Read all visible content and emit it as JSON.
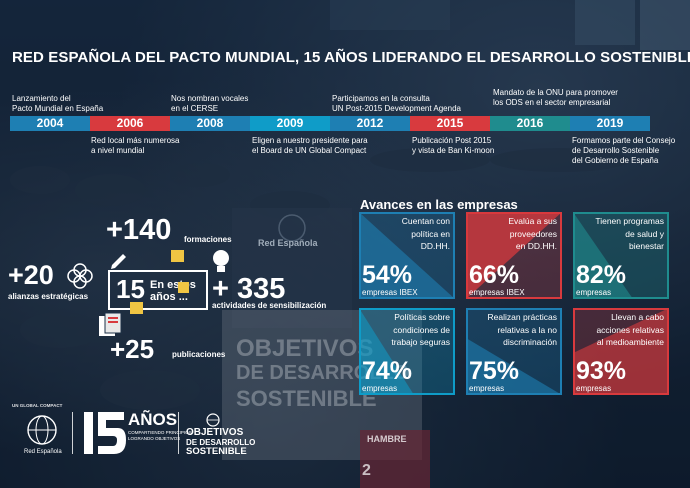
{
  "title": "RED ESPAÑOLA DEL PACTO MUNDIAL, 15 AÑOS LIDERANDO EL DESARROLLO SOSTENIBLE",
  "timeline": {
    "years": [
      "2004",
      "2006",
      "2008",
      "2009",
      "2012",
      "2015",
      "2016",
      "2019"
    ],
    "year_colors": [
      "#1e7fb3",
      "#d83a3e",
      "#1e7fb3",
      "#0f9cc8",
      "#1e7fb3",
      "#d83a3e",
      "#1f8c8e",
      "#1e7fb3"
    ],
    "above": [
      {
        "l1": "Lanzamiento del",
        "l2": "Pacto Mundial en España"
      },
      {
        "l1": "Nos nombran vocales",
        "l2": "en el CERSE"
      },
      {
        "l1": "Participamos en la consulta",
        "l2": "UN Post-2015 Development Agenda"
      },
      {
        "l1": "Mandato de la ONU para  promover",
        "l2": "los ODS en el sector empresarial"
      }
    ],
    "below": [
      {
        "l1": "Red local más numerosa",
        "l2": "a nivel mundial",
        "l3": ""
      },
      {
        "l1": "Eligen a nuestro presidente para",
        "l2": "el Board de UN Global Compact",
        "l3": ""
      },
      {
        "l1": "Publicación Post 2015",
        "l2": "y vista de Ban Ki-moon",
        "l3": ""
      },
      {
        "l1": "Formamos parte del Consejo",
        "l2": "de Desarrollo Sostenible",
        "l3": "del Gobierno de España"
      }
    ]
  },
  "stats": {
    "alianzas_num": "+20",
    "alianzas_label": "alianzas estratégicas",
    "formaciones_num": "+140",
    "formaciones_label": "formaciones",
    "center_num": "15",
    "center_l1": "En estos",
    "center_l2": "años ...",
    "actividades_num": "+ 335",
    "actividades_label": "actividades de sensibilización",
    "publicaciones_num": "+25",
    "publicaciones_label": "publicaciones"
  },
  "avances": {
    "title": "Avances en las empresas",
    "cards": [
      {
        "l1": "Cuentan con",
        "l2": "política en",
        "l3": "DD.HH.",
        "pct": "54%",
        "sub": "empresas IBEX",
        "color": "#1e7fb3",
        "style": "blue"
      },
      {
        "l1": "Evalúa a sus",
        "l2": "proveedores",
        "l3": "en DD.HH.",
        "pct": "66%",
        "sub": "empresas IBEX",
        "color": "#d83a3e",
        "style": "red"
      },
      {
        "l1": "Tienen programas",
        "l2": "de salud y",
        "l3": "bienestar",
        "pct": "82%",
        "sub": "empresas",
        "color": "#1f8c8e",
        "style": "teal"
      },
      {
        "l1": "Políticas sobre",
        "l2": "condiciones de",
        "l3": "trabajo seguras",
        "pct": "74%",
        "sub": "empresas",
        "color": "#0f9cc8",
        "style": "cyan"
      },
      {
        "l1": "Realizan prácticas",
        "l2": "relativas a la no",
        "l3": "discriminación",
        "pct": "75%",
        "sub": "empresas",
        "color": "#1e7fb3",
        "style": "blue"
      },
      {
        "l1": "Llevan a cabo",
        "l2": "acciones relativas",
        "l3": "al medioambiente",
        "pct": "93%",
        "sub": "empresas",
        "color": "#d83a3e",
        "style": "red"
      }
    ]
  },
  "logos": {
    "ungc_text": "Red Española",
    "ungc_arc": "UN GLOBAL COMPACT",
    "anos_big": "AÑOS",
    "anos_small1": "COMPARTIENDO PRINCIPIOS",
    "anos_small2": "LOGRANDO OBJETIVOS",
    "ods_l1": "OBJETIVOS",
    "ods_l2": "DE DESARROLLO",
    "ods_l3": "SOSTENIBLE"
  },
  "background": {
    "banner_text": "Red Española",
    "sign_l1": "OBJETIVOS",
    "sign_l2": "DE DESARROLLO",
    "sign_l3": "SOSTENIBLE",
    "hambre": "HAMBRE",
    "hambre_num": "2"
  }
}
